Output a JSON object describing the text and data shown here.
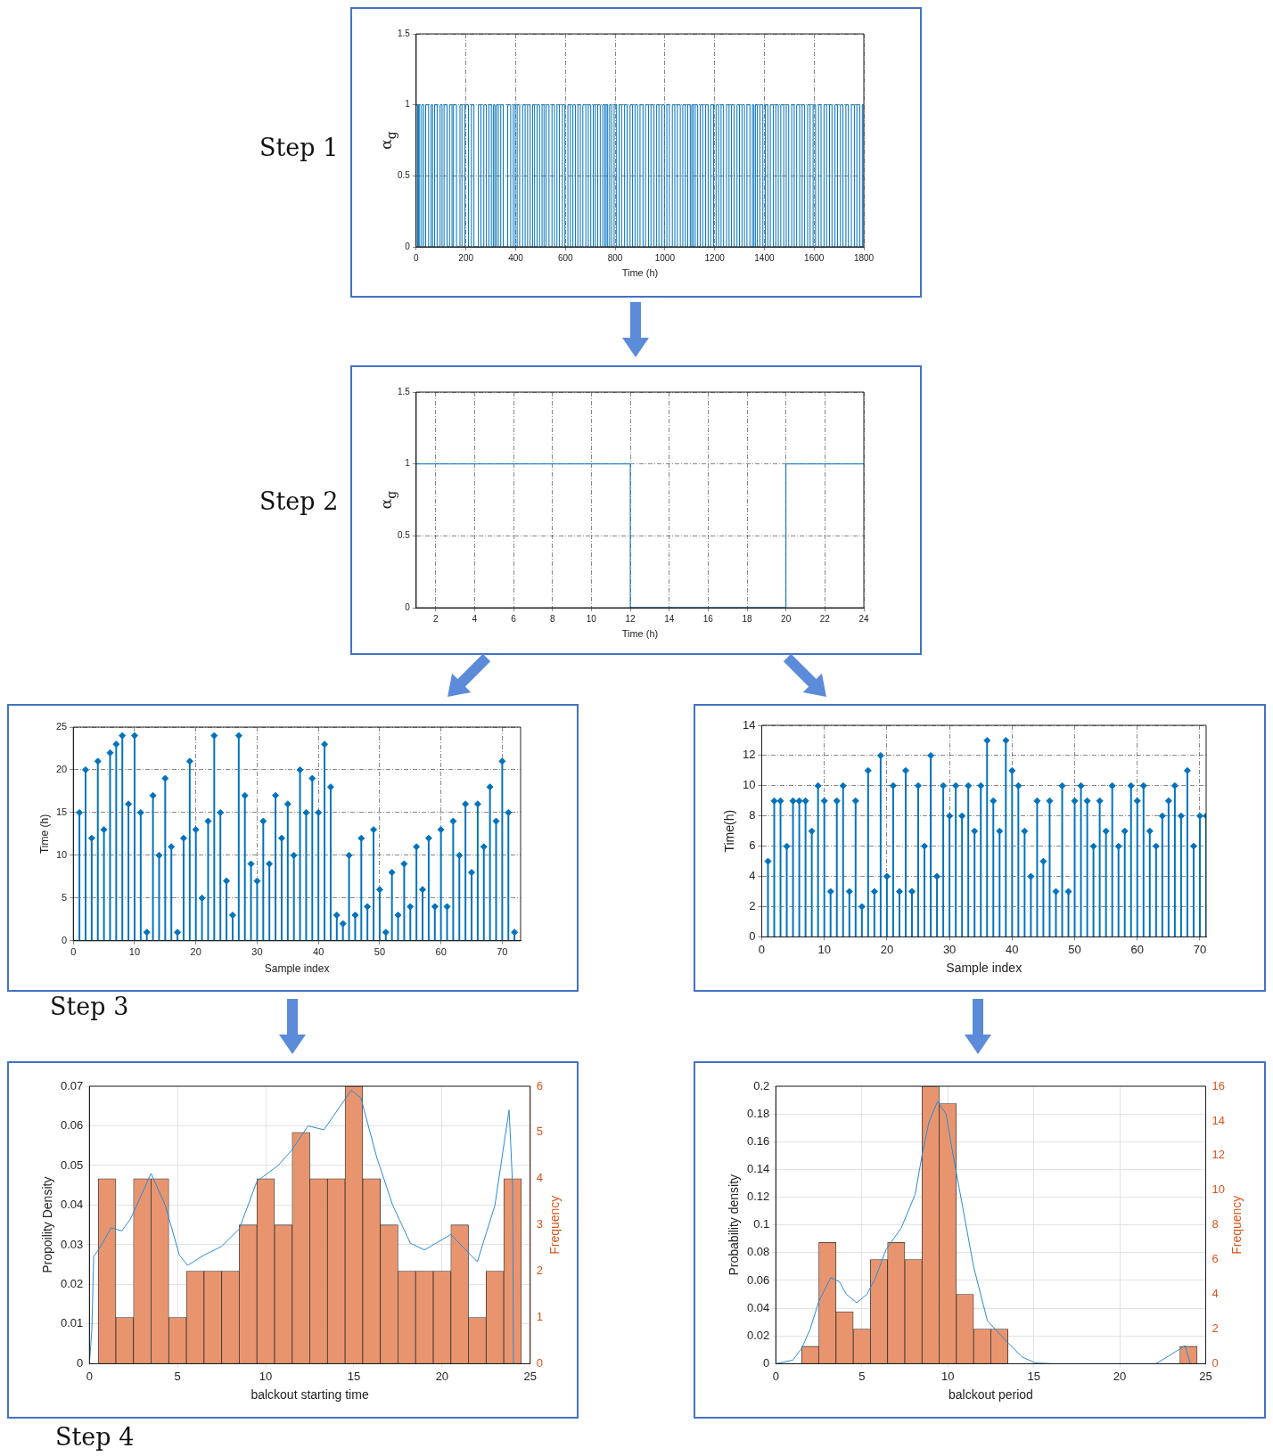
{
  "chart_data": [
    {
      "type": "step",
      "annotations": [
        "Step 1"
      ],
      "xlabel": "Time (h)",
      "ylabel": "α$_{g}$",
      "color": "#0072bd",
      "x": [
        0,
        6,
        9,
        14,
        22,
        30,
        38,
        50,
        60,
        66,
        74,
        84,
        96,
        104,
        112,
        124,
        134,
        144,
        150,
        162,
        176,
        184,
        196,
        210,
        222,
        232,
        250,
        260,
        272,
        282,
        292,
        302,
        310,
        316,
        322,
        330,
        340,
        350,
        368,
        380,
        390,
        398,
        406,
        416,
        428,
        438,
        448,
        458,
        468,
        476,
        486,
        496,
        506,
        514,
        522,
        534,
        546,
        556,
        566,
        576,
        588,
        598,
        610,
        620,
        630,
        640,
        650,
        660,
        670,
        682,
        692,
        702,
        712,
        720,
        730,
        740,
        750,
        758,
        764,
        770,
        778,
        786,
        796,
        806,
        816,
        826,
        838,
        848,
        860,
        870,
        880,
        890,
        900,
        912,
        922,
        934,
        944,
        956,
        966,
        976,
        988,
        998,
        1008,
        1018,
        1030,
        1040,
        1050,
        1062,
        1072,
        1082,
        1092,
        1102,
        1108,
        1114,
        1122,
        1132,
        1142,
        1152,
        1164,
        1174,
        1184,
        1196,
        1206,
        1216,
        1226,
        1236,
        1248,
        1258,
        1268,
        1278,
        1290,
        1300,
        1310,
        1320,
        1330,
        1342,
        1352,
        1358,
        1364,
        1372,
        1382,
        1394,
        1404,
        1414,
        1424,
        1436,
        1446,
        1456,
        1466,
        1478,
        1488,
        1498,
        1510,
        1520,
        1530,
        1542,
        1552,
        1562,
        1574,
        1584,
        1596,
        1606,
        1618,
        1628,
        1640,
        1650,
        1662,
        1672,
        1684,
        1694,
        1706,
        1716,
        1728,
        1738,
        1750,
        1762,
        1772,
        1784,
        1794,
        1800
      ],
      "values": [
        1,
        0,
        1,
        0,
        1,
        0,
        1,
        0,
        1,
        0,
        1,
        0,
        1,
        0,
        1,
        0,
        1,
        0,
        1,
        0,
        1,
        0,
        1,
        0,
        1,
        0,
        1,
        0,
        1,
        0,
        1,
        0,
        1,
        0,
        1,
        0,
        1,
        0,
        1,
        0,
        1,
        0,
        1,
        0,
        1,
        0,
        1,
        0,
        1,
        0,
        1,
        0,
        1,
        0,
        1,
        0,
        1,
        0,
        1,
        0,
        1,
        0,
        1,
        0,
        1,
        0,
        1,
        0,
        1,
        0,
        1,
        0,
        1,
        0,
        1,
        0,
        1,
        0,
        1,
        0,
        1,
        0,
        1,
        0,
        1,
        0,
        1,
        0,
        1,
        0,
        1,
        0,
        1,
        0,
        1,
        0,
        1,
        0,
        1,
        0,
        1,
        0,
        1,
        0,
        1,
        0,
        1,
        0,
        1,
        0,
        1,
        0,
        1,
        0,
        1,
        0,
        1,
        0,
        1,
        0,
        1,
        0,
        1,
        0,
        1,
        0,
        1,
        0,
        1,
        0,
        1,
        0,
        1,
        0,
        1,
        0,
        1,
        0,
        1,
        0,
        1,
        0,
        1,
        0,
        1,
        0,
        1,
        0,
        1,
        0,
        1,
        0,
        1,
        0,
        1,
        0,
        1,
        0,
        1,
        0,
        1,
        0,
        1,
        0,
        1,
        0,
        1,
        0,
        1,
        0,
        1,
        0,
        1,
        0,
        1,
        0,
        1,
        0,
        1,
        0
      ],
      "xlim": [
        0,
        1800
      ],
      "xticks": [
        0,
        200,
        400,
        600,
        800,
        1000,
        1200,
        1400,
        1600,
        1800
      ],
      "ylim": [
        0,
        1.5
      ],
      "yticks": [
        0,
        0.5,
        1,
        1.5
      ],
      "grid": true
    },
    {
      "type": "step",
      "annotations": [
        "Step 2"
      ],
      "xlabel": "Time (h)",
      "ylabel": "α$_{g}$",
      "color": "#0072bd",
      "x": [
        1,
        12,
        20,
        24
      ],
      "values": [
        1,
        0,
        1,
        1
      ],
      "xlim": [
        1,
        24
      ],
      "xticks": [
        2,
        4,
        6,
        8,
        10,
        12,
        14,
        16,
        18,
        20,
        22,
        24
      ],
      "ylim": [
        0,
        1.5
      ],
      "yticks": [
        0,
        0.5,
        1,
        1.5
      ],
      "grid": true
    },
    {
      "type": "lollipop",
      "annotations": [
        "Step 3"
      ],
      "xlabel": "Sample index",
      "ylabel": "Time (h)",
      "color": "#0072bd",
      "marker": "diamond",
      "x": [
        1,
        2,
        3,
        4,
        5,
        6,
        7,
        8,
        9,
        10,
        11,
        12,
        13,
        14,
        15,
        16,
        17,
        18,
        19,
        20,
        21,
        22,
        23,
        24,
        25,
        26,
        27,
        28,
        29,
        30,
        31,
        32,
        33,
        34,
        35,
        36,
        37,
        38,
        39,
        40,
        41,
        42,
        43,
        44,
        45,
        46,
        47,
        48,
        49,
        50,
        51,
        52,
        53,
        54,
        55,
        56,
        57,
        58,
        59,
        60,
        61,
        62,
        63,
        64,
        65,
        66,
        67,
        68,
        69,
        70,
        71,
        72
      ],
      "values": [
        15,
        20,
        12,
        21,
        13,
        22,
        23,
        24,
        16,
        24,
        15,
        1,
        17,
        10,
        19,
        11,
        1,
        12,
        21,
        13,
        5,
        14,
        24,
        15,
        7,
        3,
        24,
        17,
        9,
        7,
        14,
        9,
        17,
        12,
        16,
        10,
        20,
        15,
        19,
        15,
        23,
        18,
        3,
        2,
        10,
        3,
        12,
        4,
        13,
        6,
        1,
        8,
        3,
        9,
        4,
        11,
        6,
        12,
        4,
        13,
        4,
        14,
        10,
        16,
        8,
        16,
        11,
        18,
        14,
        21,
        15,
        1
      ],
      "xlim": [
        0,
        73
      ],
      "xticks": [
        0,
        10,
        20,
        30,
        40,
        50,
        60,
        70
      ],
      "ylim": [
        0,
        25
      ],
      "yticks": [
        0,
        5,
        10,
        15,
        20,
        25
      ],
      "grid": true
    },
    {
      "type": "lollipop",
      "xlabel": "Sample index",
      "ylabel": "Time(h)",
      "color": "#0072bd",
      "marker": "diamond",
      "x": [
        1,
        2,
        3,
        4,
        5,
        6,
        7,
        8,
        9,
        10,
        11,
        12,
        13,
        14,
        15,
        16,
        17,
        18,
        19,
        20,
        21,
        22,
        23,
        24,
        25,
        26,
        27,
        28,
        29,
        30,
        31,
        32,
        33,
        34,
        35,
        36,
        37,
        38,
        39,
        40,
        41,
        42,
        43,
        44,
        45,
        46,
        47,
        48,
        49,
        50,
        51,
        52,
        53,
        54,
        55,
        56,
        57,
        58,
        59,
        60,
        61,
        62,
        63,
        64,
        65,
        66,
        67,
        68,
        69,
        70,
        71
      ],
      "values": [
        5,
        9,
        9,
        6,
        9,
        9,
        9,
        7,
        10,
        9,
        3,
        9,
        10,
        3,
        9,
        2,
        11,
        3,
        12,
        4,
        10,
        3,
        11,
        3,
        10,
        6,
        12,
        4,
        10,
        8,
        10,
        8,
        10,
        7,
        10,
        13,
        9,
        7,
        13,
        11,
        10,
        7,
        4,
        9,
        5,
        9,
        3,
        10,
        3,
        9,
        10,
        9,
        6,
        9,
        7,
        10,
        6,
        7,
        10,
        9,
        10,
        7,
        6,
        8,
        9,
        10,
        8,
        11,
        6,
        8,
        8
      ],
      "xlim": [
        0,
        71
      ],
      "xticks": [
        0,
        10,
        20,
        30,
        40,
        50,
        60,
        70
      ],
      "ylim": [
        0,
        14
      ],
      "yticks": [
        0,
        2,
        4,
        6,
        8,
        10,
        12,
        14
      ],
      "grid": true
    },
    {
      "type": "histogram",
      "annotations": [
        "Step 4"
      ],
      "xlabel": "balckout starting time",
      "ylabel": "Propoility Density",
      "y2label": "Frequency",
      "series": [
        {
          "type": "histogram",
          "axis": "y2",
          "color": "#e8956f",
          "bins": [
            0.5,
            1.5,
            2.5,
            3.5,
            4.5,
            5.5,
            6.5,
            7.5,
            8.5,
            9.5,
            10.5,
            11.5,
            12.5,
            13.5,
            14.5,
            15.5,
            16.5,
            17.5,
            18.5,
            19.5,
            20.5,
            21.5,
            22.5,
            23.5,
            24.5
          ],
          "values": [
            4,
            1,
            4,
            4,
            1,
            2,
            2,
            2,
            3,
            4,
            3,
            5,
            4,
            4,
            6,
            4,
            3,
            2,
            2,
            2,
            3,
            1,
            2,
            4
          ]
        },
        {
          "type": "line",
          "color": "#2b8ad6",
          "x": [
            0,
            0.14,
            0.24,
            0.64,
            1.23,
            1.83,
            2.33,
            3.5,
            4.3,
            5.1,
            5.57,
            6.5,
            7.5,
            8.5,
            9.5,
            10.7,
            11.5,
            12.4,
            13.3,
            14.85,
            15.4,
            16.3,
            17.2,
            18.2,
            19.0,
            20.5,
            22.0,
            23.0,
            23.8,
            23.9,
            24.0,
            24.05
          ],
          "values": [
            0,
            0.0087,
            0.027,
            0.0296,
            0.0343,
            0.0335,
            0.0365,
            0.048,
            0.04,
            0.0274,
            0.0248,
            0.0274,
            0.0296,
            0.034,
            0.046,
            0.05,
            0.054,
            0.06,
            0.059,
            0.069,
            0.067,
            0.052,
            0.04,
            0.0304,
            0.0287,
            0.0326,
            0.0257,
            0.04,
            0.064,
            0.055,
            0.045,
            0
          ]
        }
      ],
      "xlim": [
        0,
        25
      ],
      "xticks": [
        0,
        5,
        10,
        15,
        20,
        25
      ],
      "ylim": [
        0,
        0.07
      ],
      "yticks": [
        0,
        0.01,
        0.02,
        0.03,
        0.04,
        0.05,
        0.06,
        0.07
      ],
      "y2lim": [
        0,
        6
      ],
      "y2ticks": [
        0,
        1,
        2,
        3,
        4,
        5,
        6
      ],
      "grid": true
    },
    {
      "type": "histogram",
      "xlabel": "balckout period",
      "ylabel": "Probability density",
      "y2label": "Frequency",
      "series": [
        {
          "type": "histogram",
          "axis": "y2",
          "color": "#e8956f",
          "bins": [
            1.5,
            2.5,
            3.5,
            4.5,
            5.5,
            6.5,
            7.5,
            8.5,
            9.5,
            10.5,
            11.5,
            12.5,
            13.5,
            14.5,
            15.5,
            16.5,
            17.5,
            18.5,
            19.5,
            20.5,
            21.5,
            22.5,
            23.5,
            24.5
          ],
          "values": [
            1,
            7,
            3,
            2,
            6,
            7,
            6,
            16,
            15,
            4,
            2,
            2,
            0,
            0,
            0,
            0,
            0,
            0,
            0,
            0,
            0,
            0,
            1
          ]
        },
        {
          "type": "line",
          "color": "#2b8ad6",
          "x": [
            0,
            0.98,
            1.5,
            2.0,
            2.5,
            3.2,
            3.7,
            4.1,
            4.7,
            5.3,
            5.8,
            6.4,
            7.3,
            8.1,
            8.5,
            8.9,
            9.4,
            9.9,
            10.3,
            10.7,
            11.5,
            12.3,
            13.5,
            14.3,
            15.1,
            16,
            22.1,
            22.9,
            23.8,
            24.1
          ],
          "values": [
            0,
            0.0025,
            0.011,
            0.025,
            0.045,
            0.062,
            0.059,
            0.05,
            0.044,
            0.05,
            0.062,
            0.082,
            0.098,
            0.122,
            0.15,
            0.174,
            0.189,
            0.18,
            0.151,
            0.124,
            0.07,
            0.031,
            0.015,
            0.005,
            0.0005,
            0,
            0,
            0.006,
            0.013,
            0
          ]
        }
      ],
      "xlim": [
        0,
        25
      ],
      "xticks": [
        0,
        5,
        10,
        15,
        20,
        25
      ],
      "ylim": [
        0,
        0.2
      ],
      "yticks": [
        0,
        0.02,
        0.04,
        0.06,
        0.08,
        0.1,
        0.12,
        0.14,
        0.16,
        0.18,
        0.2
      ],
      "y2lim": [
        0,
        16
      ],
      "y2ticks": [
        0,
        2,
        4,
        6,
        8,
        10,
        12,
        14,
        16
      ],
      "grid": true
    }
  ]
}
